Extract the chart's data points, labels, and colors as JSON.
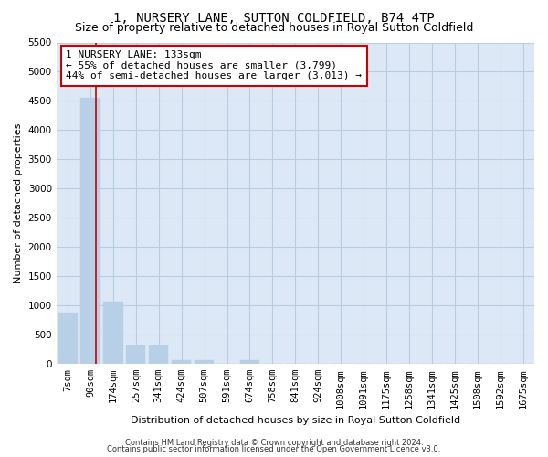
{
  "title": "1, NURSERY LANE, SUTTON COLDFIELD, B74 4TP",
  "subtitle": "Size of property relative to detached houses in Royal Sutton Coldfield",
  "xlabel": "Distribution of detached houses by size in Royal Sutton Coldfield",
  "ylabel": "Number of detached properties",
  "footnote1": "Contains HM Land Registry data © Crown copyright and database right 2024.",
  "footnote2": "Contains public sector information licensed under the Open Government Licence v3.0.",
  "categories": [
    "7sqm",
    "90sqm",
    "174sqm",
    "257sqm",
    "341sqm",
    "424sqm",
    "507sqm",
    "591sqm",
    "674sqm",
    "758sqm",
    "841sqm",
    "924sqm",
    "1008sqm",
    "1091sqm",
    "1175sqm",
    "1258sqm",
    "1341sqm",
    "1425sqm",
    "1508sqm",
    "1592sqm",
    "1675sqm"
  ],
  "values": [
    880,
    4560,
    1060,
    310,
    310,
    65,
    60,
    0,
    65,
    0,
    0,
    0,
    0,
    0,
    0,
    0,
    0,
    0,
    0,
    0,
    0
  ],
  "bar_color": "#b8cfe8",
  "vline_color": "#cc0000",
  "vline_x_index": 1,
  "vline_x_offset": 0.25,
  "annotation_text": "1 NURSERY LANE: 133sqm\n← 55% of detached houses are smaller (3,799)\n44% of semi-detached houses are larger (3,013) →",
  "annotation_box_color": "#ffffff",
  "annotation_box_edge_color": "#cc0000",
  "ylim": [
    0,
    5500
  ],
  "yticks": [
    0,
    500,
    1000,
    1500,
    2000,
    2500,
    3000,
    3500,
    4000,
    4500,
    5000,
    5500
  ],
  "ax_facecolor": "#dce8f5",
  "background_color": "#ffffff",
  "grid_color": "#b8cde0",
  "title_fontsize": 10,
  "subtitle_fontsize": 9,
  "axis_label_fontsize": 8,
  "tick_fontsize": 7.5,
  "annotation_fontsize": 8,
  "footnote_fontsize": 6
}
